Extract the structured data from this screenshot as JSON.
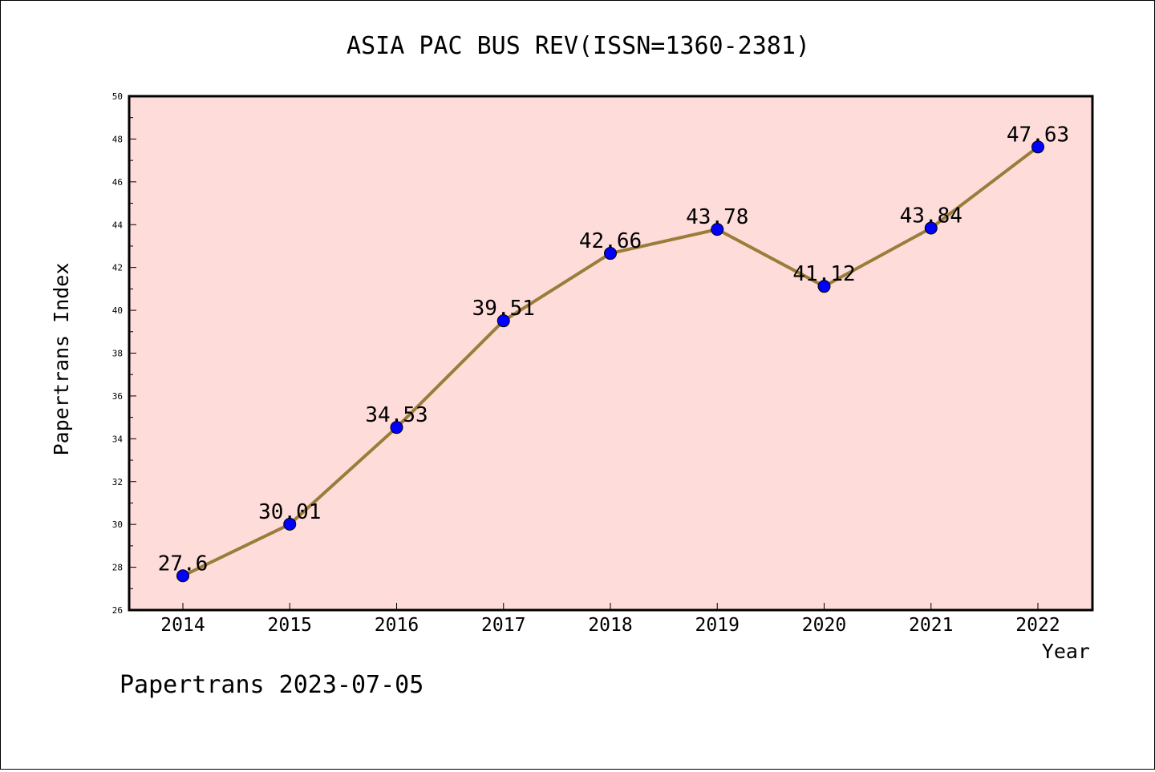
{
  "chart_data": {
    "type": "line",
    "title": "ASIA PAC BUS REV(ISSN=1360-2381)",
    "xlabel": "Year",
    "ylabel": "Papertrans Index",
    "footer": "Papertrans 2023-07-05",
    "categories": [
      "2014",
      "2015",
      "2016",
      "2017",
      "2018",
      "2019",
      "2020",
      "2021",
      "2022"
    ],
    "values": [
      27.6,
      30.01,
      34.53,
      39.51,
      42.66,
      43.78,
      41.12,
      43.84,
      47.63
    ],
    "data_labels": [
      "27.6",
      "30.01",
      "34.53",
      "39.51",
      "42.66",
      "43.78",
      "41.12",
      "43.84",
      "47.63"
    ],
    "ylim": [
      26,
      50
    ],
    "yticks": [
      26,
      28,
      30,
      32,
      34,
      36,
      38,
      40,
      42,
      44,
      46,
      48,
      50
    ],
    "grid": false,
    "colors": {
      "plot_background": "#fddcda",
      "line": "#9a7d3a",
      "marker": "#0000ff",
      "axis": "#000000"
    }
  }
}
